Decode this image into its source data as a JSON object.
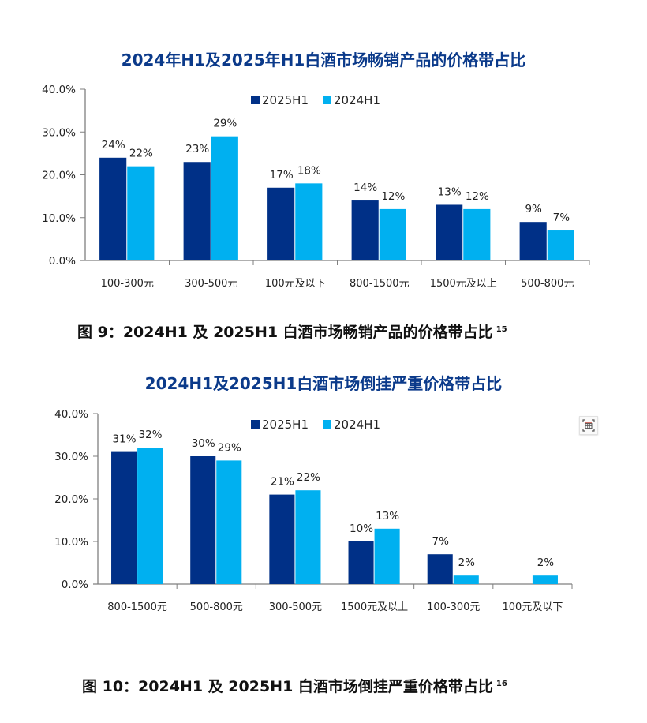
{
  "colors": {
    "series_2025": "#003087",
    "series_2024": "#00b0f0",
    "title": "#0b3a8a"
  },
  "chart_data": [
    {
      "type": "bar",
      "title": "2024年H1及2025年H1白酒市场畅销产品的价格带占比",
      "xlabel": "",
      "ylabel": "",
      "ylim": [
        0,
        40
      ],
      "yticks": [
        "40.0%",
        "30.0%",
        "20.0%",
        "10.0%",
        "0.0%"
      ],
      "ytick_values": [
        40,
        30,
        20,
        10,
        0
      ],
      "grid": false,
      "legend_position": "top-right",
      "categories": [
        "100-300元",
        "300-500元",
        "100元及以下",
        "800-1500元",
        "1500元及以上",
        "500-800元"
      ],
      "series": [
        {
          "name": "2025H1",
          "values": [
            24,
            23,
            17,
            14,
            13,
            9
          ],
          "labels": [
            "24%",
            "23%",
            "17%",
            "14%",
            "13%",
            "9%"
          ]
        },
        {
          "name": "2024H1",
          "values": [
            22,
            29,
            18,
            12,
            12,
            7
          ],
          "labels": [
            "22%",
            "29%",
            "18%",
            "12%",
            "12%",
            "7%"
          ]
        }
      ]
    },
    {
      "type": "bar",
      "title": "2024H1及2025H1白酒市场倒挂严重价格带占比",
      "xlabel": "",
      "ylabel": "",
      "ylim": [
        0,
        40
      ],
      "yticks": [
        "40.0%",
        "30.0%",
        "20.0%",
        "10.0%",
        "0.0%"
      ],
      "ytick_values": [
        40,
        30,
        20,
        10,
        0
      ],
      "grid": false,
      "legend_position": "top-right",
      "categories": [
        "800-1500元",
        "500-800元",
        "300-500元",
        "1500元及以上",
        "100-300元",
        "100元及以下"
      ],
      "series": [
        {
          "name": "2025H1",
          "values": [
            31,
            30,
            21,
            10,
            7,
            0
          ],
          "labels": [
            "31%",
            "30%",
            "21%",
            "10%",
            "7%",
            ""
          ]
        },
        {
          "name": "2024H1",
          "values": [
            32,
            29,
            22,
            13,
            2,
            2
          ],
          "labels": [
            "32%",
            "29%",
            "22%",
            "13%",
            "2%",
            "2%"
          ]
        }
      ]
    }
  ],
  "captions": [
    {
      "text": "图 9：2024H1 及 2025H1 白酒市场畅销产品的价格带占比",
      "footnote": "15"
    },
    {
      "text": "图 10：2024H1 及 2025H1 白酒市场倒挂严重价格带占比",
      "footnote": "16"
    }
  ],
  "icons": {
    "table_view": "table-icon"
  }
}
